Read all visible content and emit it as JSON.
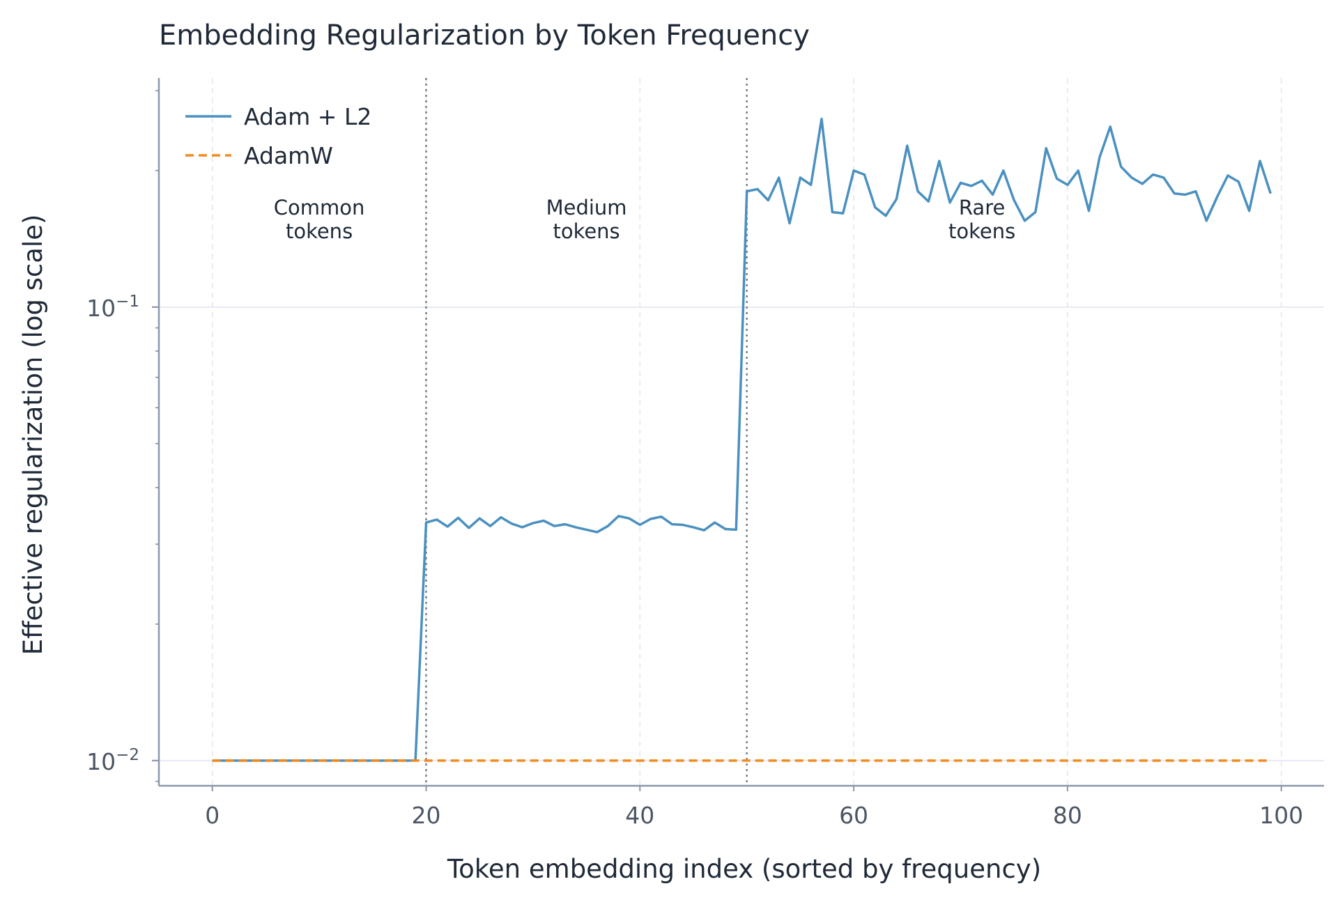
{
  "chart_data": {
    "type": "line",
    "title": "Embedding Regularization by Token Frequency",
    "xlabel": "Token embedding index (sorted by frequency)",
    "ylabel": "Effective regularization (log scale)",
    "y_scale": "log",
    "xlim": [
      -5,
      104
    ],
    "ylim": [
      0.0088,
      0.32
    ],
    "x_ticks": [
      0,
      20,
      40,
      60,
      80,
      100
    ],
    "x_tick_labels": [
      "0",
      "20",
      "40",
      "60",
      "80",
      "100"
    ],
    "y_ticks": [
      0.01,
      0.1
    ],
    "y_tick_labels": [
      {
        "base": "10",
        "exp": "−2"
      },
      {
        "base": "10",
        "exp": "−1"
      }
    ],
    "grid": true,
    "legend_position": "top-left",
    "boundaries": [
      20,
      50
    ],
    "annotations": [
      {
        "lines": [
          "Common",
          "tokens"
        ],
        "x": 10,
        "y": 0.15
      },
      {
        "lines": [
          "Medium",
          "tokens"
        ],
        "x": 35,
        "y": 0.15
      },
      {
        "lines": [
          "Rare",
          "tokens"
        ],
        "x": 72,
        "y": 0.15
      }
    ],
    "series": [
      {
        "name": "Adam + L2",
        "color": "#4a90c0",
        "style": "solid",
        "x": [
          0,
          1,
          2,
          3,
          4,
          5,
          6,
          7,
          8,
          9,
          10,
          11,
          12,
          13,
          14,
          15,
          16,
          17,
          18,
          19,
          20,
          21,
          22,
          23,
          24,
          25,
          26,
          27,
          28,
          29,
          30,
          31,
          32,
          33,
          34,
          35,
          36,
          37,
          38,
          39,
          40,
          41,
          42,
          43,
          44,
          45,
          46,
          47,
          48,
          49,
          50,
          51,
          52,
          53,
          54,
          55,
          56,
          57,
          58,
          59,
          60,
          61,
          62,
          63,
          64,
          65,
          66,
          67,
          68,
          69,
          70,
          71,
          72,
          73,
          74,
          75,
          76,
          77,
          78,
          79,
          80,
          81,
          82,
          83,
          84,
          85,
          86,
          87,
          88,
          89,
          90,
          91,
          92,
          93,
          94,
          95,
          96,
          97,
          98,
          99
        ],
        "y": [
          0.01,
          0.01,
          0.01,
          0.01,
          0.01,
          0.01,
          0.01,
          0.01,
          0.01,
          0.01,
          0.01,
          0.01,
          0.01,
          0.01,
          0.01,
          0.01,
          0.01,
          0.01,
          0.01,
          0.01,
          0.0335,
          0.034,
          0.0328,
          0.0343,
          0.0326,
          0.0342,
          0.0329,
          0.0344,
          0.0333,
          0.0327,
          0.0334,
          0.0338,
          0.0329,
          0.0332,
          0.0327,
          0.0323,
          0.0319,
          0.0329,
          0.0346,
          0.0342,
          0.0331,
          0.0341,
          0.0345,
          0.0332,
          0.0331,
          0.0327,
          0.0322,
          0.0335,
          0.0324,
          0.0323,
          0.18,
          0.182,
          0.172,
          0.193,
          0.153,
          0.193,
          0.186,
          0.26,
          0.162,
          0.161,
          0.2,
          0.196,
          0.166,
          0.159,
          0.173,
          0.227,
          0.18,
          0.171,
          0.21,
          0.17,
          0.188,
          0.185,
          0.19,
          0.177,
          0.2,
          0.172,
          0.155,
          0.162,
          0.224,
          0.192,
          0.186,
          0.2,
          0.163,
          0.214,
          0.25,
          0.204,
          0.193,
          0.187,
          0.196,
          0.193,
          0.178,
          0.177,
          0.18,
          0.155,
          0.175,
          0.195,
          0.189,
          0.163,
          0.21,
          0.178
        ]
      },
      {
        "name": "AdamW",
        "color": "#f28a1e",
        "style": "dashed",
        "x": [
          0,
          99
        ],
        "y": [
          0.01,
          0.01
        ]
      }
    ]
  }
}
